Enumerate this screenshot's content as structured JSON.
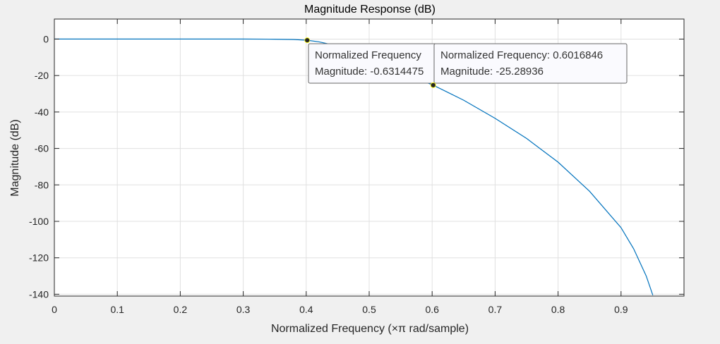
{
  "chart_data": {
    "type": "line",
    "title": "Magnitude Response (dB)",
    "xlabel": "Normalized Frequency (×π rad/sample)",
    "ylabel": "Magnitude (dB)",
    "xlim": [
      0,
      1
    ],
    "ylim": [
      -141,
      11
    ],
    "xticks": [
      0,
      0.1,
      0.2,
      0.3,
      0.4,
      0.5,
      0.6,
      0.7,
      0.8,
      0.9
    ],
    "xtick_labels": [
      "0",
      "0.1",
      "0.2",
      "0.3",
      "0.4",
      "0.5",
      "0.6",
      "0.7",
      "0.8",
      "0.9"
    ],
    "yticks": [
      0,
      -20,
      -40,
      -60,
      -80,
      -100,
      -120,
      -140
    ],
    "ytick_labels": [
      "0",
      "-20",
      "-40",
      "-60",
      "-80",
      "-100",
      "-120",
      "-140"
    ],
    "grid": true,
    "line_color": "#0072bd",
    "series": [
      {
        "x": [
          0,
          0.05,
          0.1,
          0.15,
          0.2,
          0.25,
          0.3,
          0.35,
          0.38,
          0.4016,
          0.42,
          0.44,
          0.46,
          0.48,
          0.5,
          0.52,
          0.54,
          0.56,
          0.58,
          0.6017,
          0.65,
          0.7,
          0.75,
          0.8,
          0.85,
          0.9,
          0.92,
          0.94,
          0.9505
        ],
        "y": [
          0,
          0,
          0,
          0,
          0,
          0,
          0,
          -0.05,
          -0.2,
          -0.63,
          -1.5,
          -3.0,
          -5.0,
          -7.5,
          -10.2,
          -13.0,
          -16.2,
          -19.2,
          -22.3,
          -25.29,
          -33.5,
          -43.5,
          -54.5,
          -67.5,
          -83.5,
          -103.5,
          -115.0,
          -130.0,
          -140.5
        ]
      }
    ],
    "datatips": [
      {
        "x": 0.4016,
        "y": -0.6314475,
        "line1": "Normalized Frequency",
        "line2": "Magnitude: -0.6314475"
      },
      {
        "x": 0.6016846,
        "y": -25.28936,
        "line1": "Normalized Frequency: 0.6016846",
        "line2": "Magnitude: -25.28936"
      }
    ]
  }
}
